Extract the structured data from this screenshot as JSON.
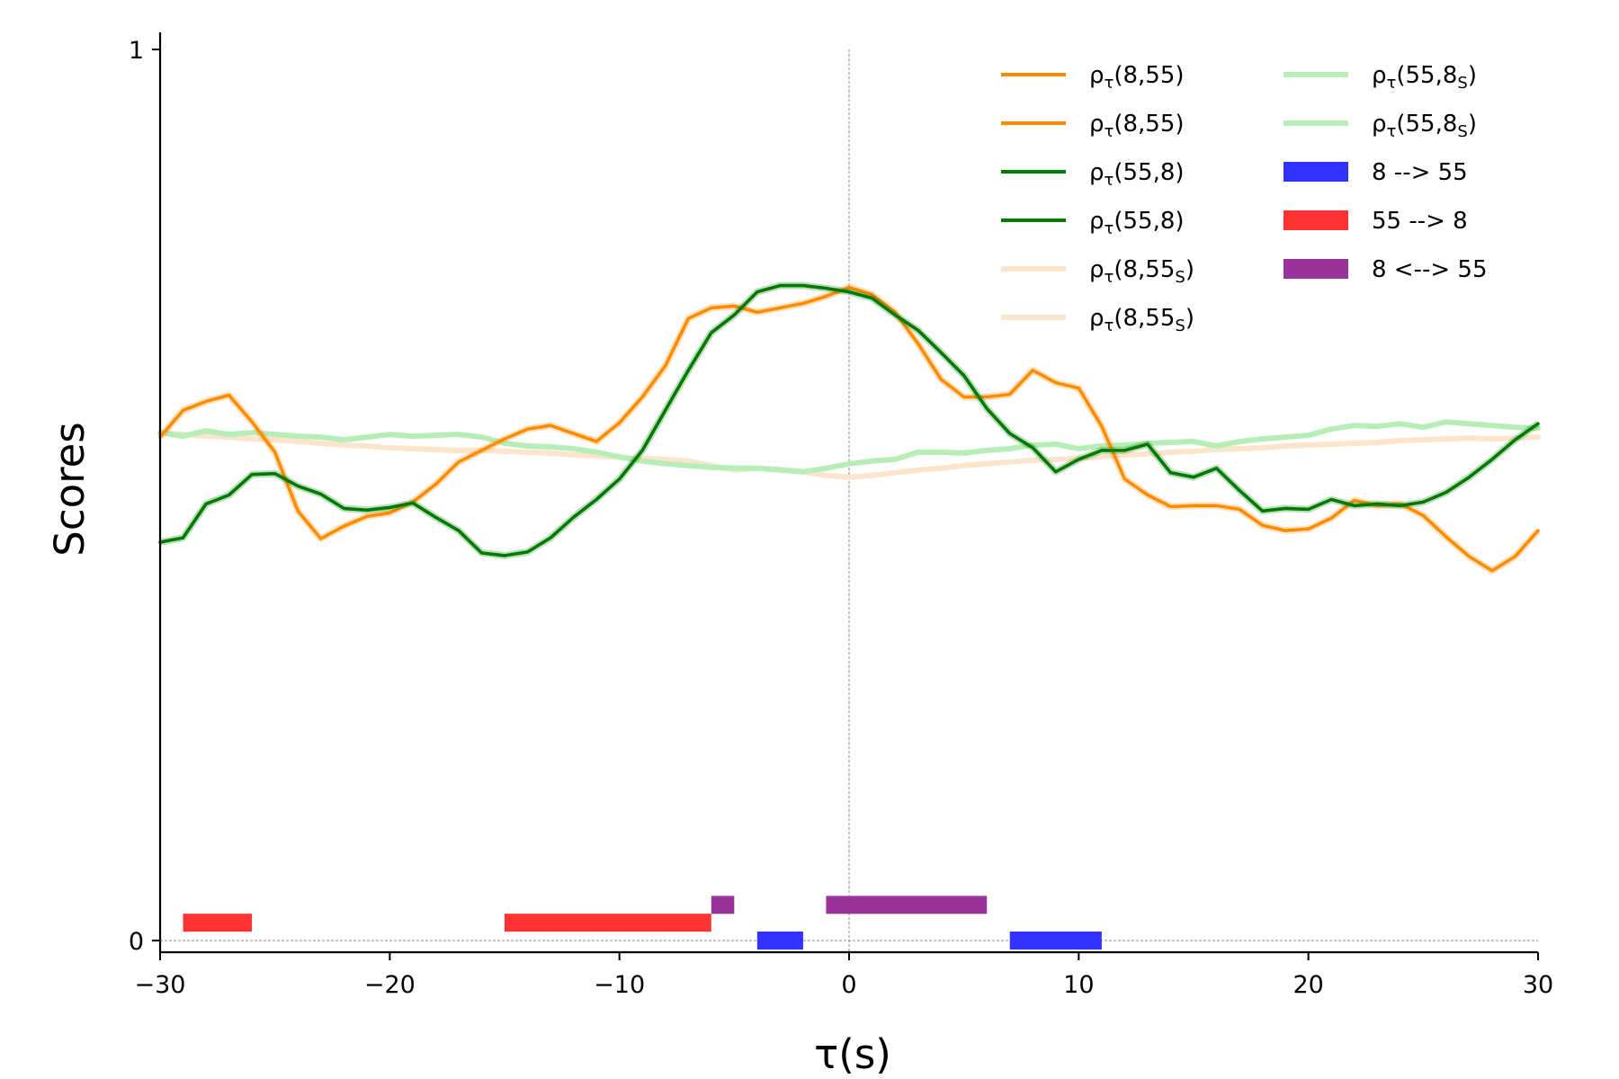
{
  "chart_data": {
    "type": "line",
    "title": "",
    "xlabel": "τ(s)",
    "ylabel": "Scores",
    "xlim": [
      -30,
      30
    ],
    "ylim": [
      0,
      1
    ],
    "xticks": [
      -30,
      -20,
      -10,
      0,
      10,
      20,
      30
    ],
    "xtick_labels": [
      "−30",
      "−20",
      "−10",
      "0",
      "10",
      "20",
      "30"
    ],
    "yticks": [
      0,
      1
    ],
    "ytick_labels": [
      "0",
      "1"
    ],
    "grid": false,
    "legend_position": "top-right",
    "reference_lines": [
      {
        "axis": "x",
        "value": 0,
        "style": "dashed"
      },
      {
        "axis": "y",
        "value": 0,
        "style": "dashed"
      }
    ],
    "series": [
      {
        "name": "ρτ(8,55)",
        "color": "#ff8c00",
        "x": [
          -30,
          -29,
          -28,
          -27,
          -26,
          -25,
          -24,
          -23,
          -22,
          -21,
          -20,
          -19,
          -18,
          -17,
          -16,
          -15,
          -14,
          -13,
          -12,
          -11,
          -10,
          -9,
          -8,
          -7,
          -6,
          -5,
          -4,
          -3,
          -2,
          -1,
          0,
          1,
          2,
          3,
          4,
          5,
          6,
          7,
          8,
          9,
          10,
          11,
          12,
          13,
          14,
          15,
          16,
          17,
          18,
          19,
          20,
          21,
          22,
          23,
          24,
          25,
          26,
          27,
          28,
          29,
          30
        ],
        "y": [
          0.565,
          0.595,
          0.605,
          0.612,
          0.582,
          0.548,
          0.482,
          0.451,
          0.465,
          0.476,
          0.48,
          0.492,
          0.512,
          0.537,
          0.55,
          0.563,
          0.574,
          0.578,
          0.569,
          0.56,
          0.581,
          0.61,
          0.645,
          0.698,
          0.71,
          0.712,
          0.705,
          0.71,
          0.715,
          0.723,
          0.733,
          0.725,
          0.705,
          0.67,
          0.63,
          0.61,
          0.61,
          0.613,
          0.64,
          0.626,
          0.62,
          0.577,
          0.518,
          0.5,
          0.487,
          0.488,
          0.488,
          0.484,
          0.466,
          0.46,
          0.462,
          0.474,
          0.494,
          0.488,
          0.49,
          0.477,
          0.453,
          0.431,
          0.415,
          0.431,
          0.46
        ]
      },
      {
        "name": "ρτ(8,55)",
        "color": "#ff8c00",
        "x": [],
        "y": []
      },
      {
        "name": "ρτ(55,8)",
        "color": "#007a00",
        "x": [
          -30,
          -29,
          -28,
          -27,
          -26,
          -25,
          -24,
          -23,
          -22,
          -21,
          -20,
          -19,
          -18,
          -17,
          -16,
          -15,
          -14,
          -13,
          -12,
          -11,
          -10,
          -9,
          -8,
          -7,
          -6,
          -5,
          -4,
          -3,
          -2,
          -1,
          0,
          1,
          2,
          3,
          4,
          5,
          6,
          7,
          8,
          9,
          10,
          11,
          12,
          13,
          14,
          15,
          16,
          17,
          18,
          19,
          20,
          21,
          22,
          23,
          24,
          25,
          26,
          27,
          28,
          29,
          30
        ],
        "y": [
          0.447,
          0.452,
          0.49,
          0.5,
          0.523,
          0.524,
          0.51,
          0.501,
          0.485,
          0.483,
          0.486,
          0.491,
          0.475,
          0.46,
          0.435,
          0.432,
          0.436,
          0.452,
          0.475,
          0.495,
          0.518,
          0.55,
          0.595,
          0.64,
          0.682,
          0.702,
          0.728,
          0.735,
          0.735,
          0.732,
          0.728,
          0.721,
          0.702,
          0.685,
          0.66,
          0.634,
          0.597,
          0.569,
          0.553,
          0.526,
          0.54,
          0.55,
          0.55,
          0.557,
          0.525,
          0.52,
          0.53,
          0.505,
          0.482,
          0.485,
          0.484,
          0.495,
          0.488,
          0.49,
          0.488,
          0.492,
          0.503,
          0.52,
          0.54,
          0.562,
          0.58
        ]
      },
      {
        "name": "ρτ(55,8)",
        "color": "#007a00",
        "x": [],
        "y": []
      },
      {
        "name": "ρτ(8,55S)",
        "color": "#fde5cc",
        "x": [
          -30,
          -29,
          -28,
          -27,
          -26,
          -25,
          -24,
          -23,
          -22,
          -21,
          -20,
          -19,
          -18,
          -17,
          -16,
          -15,
          -14,
          -13,
          -12,
          -11,
          -10,
          -9,
          -8,
          -7,
          -6,
          -5,
          -4,
          -3,
          -2,
          -1,
          0,
          1,
          2,
          3,
          4,
          5,
          6,
          7,
          8,
          9,
          10,
          11,
          12,
          13,
          14,
          15,
          16,
          17,
          18,
          19,
          20,
          21,
          22,
          23,
          24,
          25,
          26,
          27,
          28,
          29,
          30
        ],
        "y": [
          0.57,
          0.568,
          0.566,
          0.565,
          0.563,
          0.562,
          0.56,
          0.558,
          0.556,
          0.555,
          0.553,
          0.552,
          0.551,
          0.55,
          0.55,
          0.549,
          0.548,
          0.547,
          0.545,
          0.544,
          0.542,
          0.541,
          0.54,
          0.538,
          0.533,
          0.528,
          0.53,
          0.529,
          0.526,
          0.522,
          0.52,
          0.522,
          0.525,
          0.528,
          0.53,
          0.533,
          0.535,
          0.537,
          0.539,
          0.54,
          0.541,
          0.543,
          0.545,
          0.546,
          0.548,
          0.549,
          0.551,
          0.552,
          0.553,
          0.555,
          0.556,
          0.557,
          0.558,
          0.559,
          0.561,
          0.562,
          0.563,
          0.564,
          0.563,
          0.564,
          0.565
        ]
      },
      {
        "name": "ρτ(8,55S)",
        "color": "#fde5cc",
        "x": [],
        "y": []
      },
      {
        "name": "ρτ(55,8S)",
        "color": "#b7eeb7",
        "x": [
          -30,
          -29,
          -28,
          -27,
          -26,
          -25,
          -24,
          -23,
          -22,
          -21,
          -20,
          -19,
          -18,
          -17,
          -16,
          -15,
          -14,
          -13,
          -12,
          -11,
          -10,
          -9,
          -8,
          -7,
          -6,
          -5,
          -4,
          -3,
          -2,
          -1,
          0,
          1,
          2,
          3,
          4,
          5,
          6,
          7,
          8,
          9,
          10,
          11,
          12,
          13,
          14,
          15,
          16,
          17,
          18,
          19,
          20,
          21,
          22,
          23,
          24,
          25,
          26,
          27,
          28,
          29,
          30
        ],
        "y": [
          0.57,
          0.566,
          0.572,
          0.568,
          0.57,
          0.568,
          0.566,
          0.565,
          0.562,
          0.565,
          0.568,
          0.566,
          0.567,
          0.568,
          0.565,
          0.558,
          0.555,
          0.554,
          0.552,
          0.548,
          0.543,
          0.538,
          0.535,
          0.533,
          0.531,
          0.53,
          0.53,
          0.528,
          0.526,
          0.53,
          0.535,
          0.538,
          0.54,
          0.548,
          0.548,
          0.547,
          0.55,
          0.552,
          0.556,
          0.557,
          0.552,
          0.555,
          0.556,
          0.558,
          0.559,
          0.56,
          0.555,
          0.56,
          0.563,
          0.565,
          0.567,
          0.574,
          0.578,
          0.577,
          0.58,
          0.576,
          0.582,
          0.58,
          0.578,
          0.576,
          0.575
        ]
      },
      {
        "name": "ρτ(55,8S)",
        "color": "#b7eeb7",
        "x": [],
        "y": []
      }
    ],
    "intervals": [
      {
        "name": "8 --> 55",
        "color": "#3333ff",
        "level": 0.0,
        "ranges": [
          [
            -4,
            -2
          ],
          [
            7,
            11
          ]
        ]
      },
      {
        "name": "55 --> 8",
        "color": "#ff3333",
        "level": 0.02,
        "ranges": [
          [
            -29,
            -26
          ],
          [
            -15,
            -6
          ]
        ]
      },
      {
        "name": "8 <--> 55",
        "color": "#993399",
        "level": 0.04,
        "ranges": [
          [
            -6,
            -5
          ],
          [
            -1,
            6
          ]
        ]
      }
    ]
  }
}
